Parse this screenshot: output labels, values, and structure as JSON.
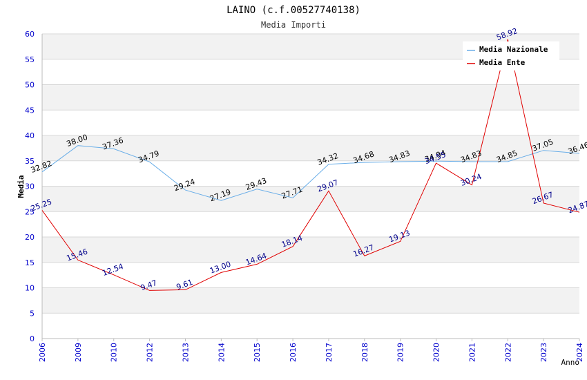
{
  "chart_data": {
    "type": "line",
    "title": "LAINO (c.f.00527740138)",
    "subtitle": "Media Importi",
    "xlabel": "Anno",
    "ylabel": "Media",
    "ylim": [
      0,
      60
    ],
    "ytick_step": 5,
    "yticks": [
      "0",
      "5",
      "10",
      "15",
      "20",
      "25",
      "30",
      "35",
      "40",
      "45",
      "50",
      "55",
      "60"
    ],
    "grid": true,
    "legend_position": "top-right",
    "categories": [
      "2006",
      "2009",
      "2010",
      "2012",
      "2013",
      "2014",
      "2015",
      "2016",
      "2017",
      "2018",
      "2019",
      "2020",
      "2021",
      "2022",
      "2023",
      "2024"
    ],
    "series": [
      {
        "name": "Media Nazionale",
        "color": "#6aaee8",
        "label_color": "#000000",
        "values": [
          32.82,
          38.0,
          37.36,
          34.79,
          29.24,
          27.19,
          29.43,
          27.71,
          34.32,
          34.68,
          34.83,
          34.94,
          34.83,
          34.85,
          37.05,
          36.46
        ],
        "labels": [
          "32.82",
          "38.00",
          "37.36",
          "34.79",
          "29.24",
          "27.19",
          "29.43",
          "27.71",
          "34.32",
          "34.68",
          "34.83",
          "34.94",
          "34.83",
          "34.85",
          "37.05",
          "36.46"
        ]
      },
      {
        "name": "Media Ente",
        "color": "#e00000",
        "label_color": "#00008b",
        "values": [
          25.25,
          15.46,
          12.54,
          9.47,
          9.61,
          13.0,
          14.64,
          18.14,
          29.07,
          16.27,
          19.13,
          34.55,
          30.24,
          58.92,
          26.67,
          24.87
        ],
        "labels": [
          "25.25",
          "15.46",
          "12.54",
          "9.47",
          "9.61",
          "13.00",
          "14.64",
          "18.14",
          "29.07",
          "16.27",
          "19.13",
          "34.55",
          "30.24",
          "58.92",
          "26.67",
          "24.87"
        ]
      }
    ],
    "colors": {
      "axis_text": "#0000cc",
      "band": "#f2f2f2",
      "gridline": "#d8d8d8",
      "axis": "#bbbbbb"
    }
  }
}
